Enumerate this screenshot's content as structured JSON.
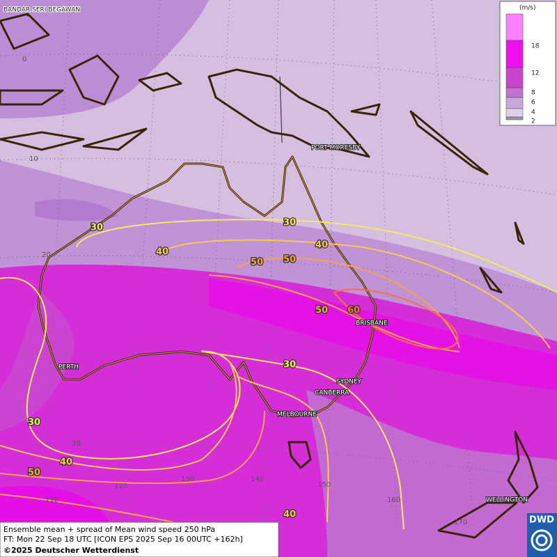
{
  "map": {
    "cities": [
      "BANDAR SERI BEGAWAN",
      "PORT MORESBY",
      "BRISBANE",
      "PERTH",
      "SYDNEY",
      "CANBERRA",
      "MELBOURNE",
      "WELLINGTON"
    ],
    "grid_labels": [
      "0",
      "10",
      "20",
      "30",
      "110",
      "120",
      "130",
      "140",
      "150",
      "160",
      "170"
    ],
    "contour_labels": [
      "30",
      "30",
      "40",
      "40",
      "50",
      "50",
      "50",
      "60",
      "30",
      "30",
      "40",
      "50",
      "40"
    ]
  },
  "legend": {
    "unit": "(m/s)",
    "levels": [
      "18",
      "12",
      "8",
      "6",
      "4",
      "2"
    ]
  },
  "footer": {
    "line1": "Ensemble mean + spread of Mean wind speed 250 hPa",
    "line2": "FT: Mon 22 Sep 18 UTC [ICON EPS 2025 Sep 16 00UTC +162h]",
    "copyright": "©2025 Deutscher Wetterdienst"
  },
  "logo": "DWD"
}
